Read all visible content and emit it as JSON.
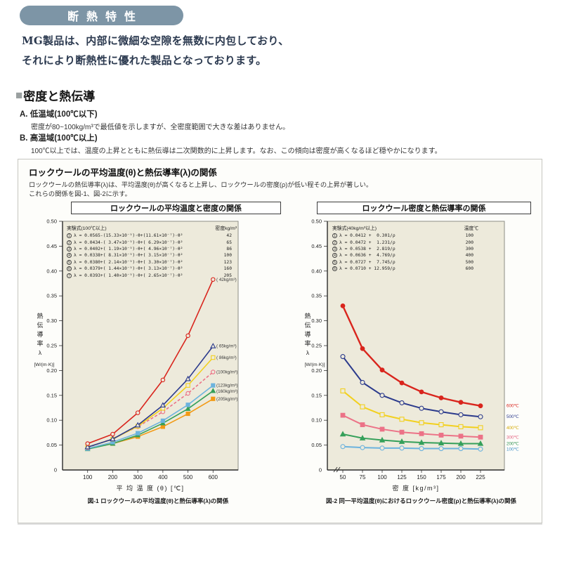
{
  "colors": {
    "header_bar_bg": "#7d95a6",
    "plot_bg": "#edeadb",
    "panel_bg": "#fdfdfa",
    "series_red": "#d9251d",
    "series_navy": "#2b3a8c",
    "series_yellow": "#f2d01e",
    "series_pink": "#ec7287",
    "series_sky": "#6cb3de",
    "series_green": "#35a05a",
    "series_orange": "#f29a15"
  },
  "page": {
    "header_title": "断熱特性",
    "intro_line1": "MG製品は、内部に微細な空隙を無数に内包しており、",
    "intro_line2": "それにより断熱性に優れた製品となっております。"
  },
  "section": {
    "bullet": "■",
    "title": "密度と熱伝導",
    "items": [
      {
        "label": "A. 低温域(100℃以下)",
        "body": "密度が80~100kg/m³で最低値を示しますが、全密度範囲で大きな差はありません。"
      },
      {
        "label": "B. 高温域(100℃以上)",
        "body": "100℃以上では、温度の上昇とともに熱伝導は二次関数的に上昇します。なお、この傾向は密度が高くなるほど穏やかになります。"
      }
    ]
  },
  "panel": {
    "title": "ロックウールの平均温度(θ)と熱伝導率(λ)の関係",
    "desc_line1": "ロックウールの熱伝導率(λ)は、平均温度(θ)が高くなると上昇し、ロックウールの密度(ρ)が低い程その上昇が著しい。",
    "desc_line2": "これらの関係を図-1、図-2に示す。"
  },
  "chart_data": [
    {
      "id": "fig1",
      "type": "line",
      "title": "ロックウールの平均温度と密度の関係",
      "caption": "図-1 ロックウールの平均温度(θ)と熱伝導率(λ)の関係",
      "xlabel": "平 均 温 度 (θ)  [℃]",
      "ylabel_chars": "熱伝導率λ",
      "ylabel_unit": "[W/(m·K)]",
      "x": [
        100,
        200,
        300,
        400,
        500,
        600
      ],
      "xticks": [
        100,
        200,
        300,
        400,
        500,
        600
      ],
      "ylim": [
        0,
        0.5
      ],
      "ytick_step": 0.05,
      "x_break": false,
      "legend_position": "curve-end-labels",
      "grid": false,
      "formula_header": "実験式(100℃以上)",
      "formula_value_header": "密度kg/m³",
      "series": [
        {
          "num": "1",
          "formula": "λ = 0.0565-(15.33×10⁻⁵)·θ+(11.61×10⁻⁷)·θ²",
          "value": "42",
          "label": "( 42kg/m³)",
          "color": "#d9251d",
          "marker": "circle-open",
          "dash": false,
          "values": [
            0.053,
            0.072,
            0.115,
            0.181,
            0.27,
            0.383
          ]
        },
        {
          "num": "2",
          "formula": "λ = 0.0434-( 3.47×10⁻⁵)·θ+( 6.29×10⁻⁷)·θ²",
          "value": "65",
          "label": "( 65kg/m³)",
          "color": "#2b3a8c",
          "marker": "triangle-open",
          "dash": false,
          "values": [
            0.046,
            0.062,
            0.09,
            0.13,
            0.183,
            0.249
          ]
        },
        {
          "num": "3",
          "formula": "λ = 0.0402+( 1.19×10⁻⁵)·θ+( 4.96×10⁻⁷)·θ²",
          "value": "86",
          "label": "( 86kg/m³)",
          "color": "#f2d01e",
          "marker": "square-open",
          "dash": false,
          "values": [
            0.046,
            0.062,
            0.088,
            0.124,
            0.17,
            0.226
          ]
        },
        {
          "num": "4",
          "formula": "λ = 0.0338+( 8.31×10⁻⁵)·θ+( 3.15×10⁻⁷)·θ²",
          "value": "100",
          "label": "(100kg/m³)",
          "color": "#ec7287",
          "marker": "circle-open",
          "dash": true,
          "values": [
            0.045,
            0.063,
            0.087,
            0.117,
            0.154,
            0.197
          ]
        },
        {
          "num": "5",
          "formula": "λ = 0.0380+( 2.14×10⁻⁵)·θ+( 3.30×10⁻⁷)·θ²",
          "value": "123",
          "label": "(123kg/m³)",
          "color": "#6cb3de",
          "marker": "square-filled",
          "dash": false,
          "values": [
            0.043,
            0.056,
            0.074,
            0.099,
            0.131,
            0.17
          ]
        },
        {
          "num": "6",
          "formula": "λ = 0.0379+( 1.44×10⁻⁵)·θ+( 3.13×10⁻⁷)·θ²",
          "value": "160",
          "label": "(160kg/m³)",
          "color": "#35a05a",
          "marker": "triangle-filled",
          "dash": false,
          "values": [
            0.042,
            0.053,
            0.07,
            0.094,
            0.123,
            0.159
          ]
        },
        {
          "num": "7",
          "formula": "λ = 0.0393+( 1.40×10⁻⁵)·θ+( 2.65×10⁻⁷)·θ²",
          "value": "205",
          "label": "(205kg/m³)",
          "color": "#f29a15",
          "marker": "square-filled",
          "dash": false,
          "values": [
            0.043,
            0.053,
            0.067,
            0.087,
            0.113,
            0.143
          ]
        }
      ]
    },
    {
      "id": "fig2",
      "type": "line",
      "title": "ロックウール密度と熱伝導率の関係",
      "caption": "図-2 同一平均温度(θ)におけるロックウール密度(ρ)と熱伝導率(λ)の関係",
      "xlabel": "密 度  [kg/m³]",
      "ylabel_chars": "熱伝導率λ",
      "ylabel_unit": "[W/(m·K)]",
      "x": [
        50,
        75,
        100,
        125,
        150,
        175,
        200,
        225
      ],
      "xticks": [
        50,
        75,
        100,
        125,
        150,
        175,
        200,
        225
      ],
      "ylim": [
        0,
        0.5
      ],
      "ytick_step": 0.05,
      "x_break": true,
      "legend_position": "curve-end-labels",
      "grid": false,
      "formula_header": "実験式(40kg/m³以上)",
      "formula_value_header": "温度℃",
      "series": [
        {
          "num": "1",
          "formula": "λ = 0.0412 +  0.301/ρ",
          "value": "100",
          "label": "100℃",
          "color": "#6cb3de",
          "label_color": "#3f8fc4",
          "marker": "circle-open",
          "dash": false,
          "values": [
            0.047,
            0.045,
            0.044,
            0.044,
            0.043,
            0.043,
            0.043,
            0.042
          ]
        },
        {
          "num": "2",
          "formula": "λ = 0.0472 +  1.231/ρ",
          "value": "200",
          "label": "200℃",
          "color": "#35a05a",
          "label_color": "#2f9150",
          "marker": "triangle-filled",
          "dash": false,
          "values": [
            0.072,
            0.064,
            0.06,
            0.057,
            0.055,
            0.054,
            0.053,
            0.053
          ]
        },
        {
          "num": "3",
          "formula": "λ = 0.0538 +  2.819/ρ",
          "value": "300",
          "label": "300℃",
          "color": "#ec7287",
          "label_color": "#e45f7e",
          "marker": "square-filled",
          "dash": false,
          "values": [
            0.11,
            0.091,
            0.082,
            0.076,
            0.073,
            0.07,
            0.068,
            0.066
          ]
        },
        {
          "num": "4",
          "formula": "λ = 0.0636 +  4.769/ρ",
          "value": "400",
          "label": "400℃",
          "color": "#f2d01e",
          "label_color": "#d4a900",
          "marker": "square-open",
          "dash": false,
          "values": [
            0.159,
            0.127,
            0.111,
            0.102,
            0.095,
            0.091,
            0.087,
            0.085
          ]
        },
        {
          "num": "5",
          "formula": "λ = 0.0727 +  7.745/ρ",
          "value": "500",
          "label": "500℃",
          "color": "#2b3a8c",
          "label_color": "#2b3a8c",
          "marker": "circle-open",
          "dash": false,
          "values": [
            0.228,
            0.176,
            0.15,
            0.135,
            0.124,
            0.117,
            0.111,
            0.107
          ]
        },
        {
          "num": "6",
          "formula": "λ = 0.0710 + 12.959/ρ",
          "value": "600",
          "label": "600℃",
          "color": "#d9251d",
          "label_color": "#d9251d",
          "marker": "circle-filled",
          "dash": false,
          "lw": 2.4,
          "values": [
            0.33,
            0.244,
            0.201,
            0.175,
            0.157,
            0.145,
            0.136,
            0.129
          ]
        }
      ]
    }
  ]
}
